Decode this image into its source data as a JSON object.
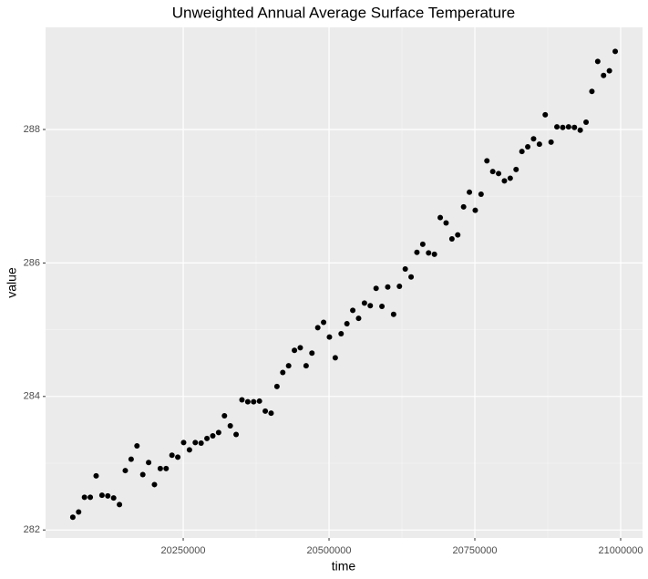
{
  "chart_data": {
    "type": "scatter",
    "title": "Unweighted Annual Average Surface Temperature",
    "x_label": "time",
    "y_label": "value",
    "color": "#000000",
    "grid": true,
    "xlim": [
      20014000,
      21037500
    ],
    "ylim": [
      281.88,
      289.53
    ],
    "xticks": [
      20250000,
      20500000,
      20750000,
      21000000
    ],
    "yticks": [
      282,
      284,
      286,
      288
    ],
    "x": [
      20060700,
      20070700,
      20080700,
      20090700,
      20100700,
      20110700,
      20120700,
      20130700,
      20140700,
      20150700,
      20160700,
      20170700,
      20180700,
      20190700,
      20200700,
      20210700,
      20220700,
      20230700,
      20240700,
      20250700,
      20260700,
      20270700,
      20280700,
      20290700,
      20300700,
      20310700,
      20320700,
      20330700,
      20340700,
      20350700,
      20360700,
      20370700,
      20380700,
      20390700,
      20400700,
      20410700,
      20420700,
      20430700,
      20440700,
      20450700,
      20460700,
      20470700,
      20480700,
      20490700,
      20500700,
      20510700,
      20520700,
      20530700,
      20540700,
      20550700,
      20560700,
      20570700,
      20580700,
      20590700,
      20600700,
      20610700,
      20620700,
      20630700,
      20640700,
      20650700,
      20660700,
      20670700,
      20680700,
      20690700,
      20700700,
      20710700,
      20720700,
      20730700,
      20740700,
      20750700,
      20760700,
      20770700,
      20780700,
      20790700,
      20800700,
      20810700,
      20820700,
      20830700,
      20840700,
      20850700,
      20860700,
      20870700,
      20880700,
      20890700,
      20900700,
      20910700,
      20920700,
      20930700,
      20940700,
      20950700,
      20960700,
      20970700,
      20980700,
      20990700
    ],
    "values": [
      282.19,
      282.27,
      282.49,
      282.49,
      282.81,
      282.52,
      282.51,
      282.48,
      282.38,
      282.89,
      283.06,
      283.26,
      282.83,
      283.01,
      282.68,
      282.92,
      282.92,
      283.12,
      283.09,
      283.31,
      283.2,
      283.31,
      283.3,
      283.37,
      283.41,
      283.46,
      283.71,
      283.56,
      283.43,
      283.95,
      283.92,
      283.92,
      283.93,
      283.78,
      283.75,
      284.15,
      284.36,
      284.46,
      284.69,
      284.73,
      284.46,
      284.65,
      285.03,
      285.11,
      284.89,
      284.58,
      284.94,
      285.09,
      285.29,
      285.17,
      285.4,
      285.36,
      285.62,
      285.35,
      285.64,
      285.23,
      285.65,
      285.91,
      285.79,
      286.16,
      286.28,
      286.15,
      286.13,
      286.68,
      286.6,
      286.36,
      286.42,
      286.84,
      287.06,
      286.79,
      287.03,
      287.53,
      287.37,
      287.34,
      287.23,
      287.27,
      287.4,
      287.67,
      287.74,
      287.86,
      287.78,
      288.22,
      287.81,
      288.04,
      288.03,
      288.04,
      288.03,
      287.99,
      288.11,
      288.57,
      289.02,
      288.81,
      288.88,
      289.17
    ]
  }
}
